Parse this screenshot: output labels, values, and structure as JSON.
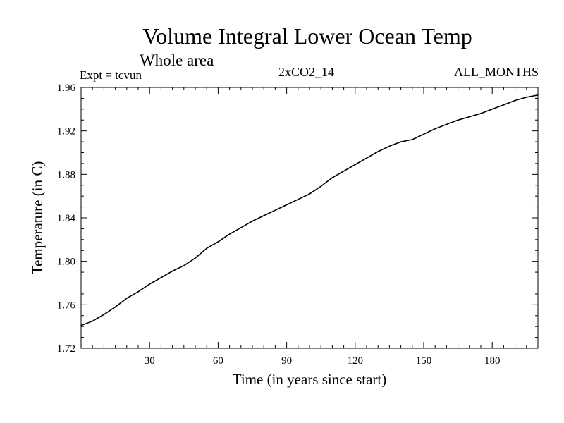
{
  "header": {
    "title": "Volume Integral Lower Ocean Temp",
    "subtitle": "Whole area",
    "experiment": "Expt = tcvun",
    "run_label": "2xCO2_14",
    "months_label": "ALL_MONTHS"
  },
  "chart_data": {
    "type": "line",
    "title": "Volume Integral Lower Ocean Temp",
    "subtitle": "Whole area",
    "xlabel": "Time (in years since start)",
    "ylabel": "Temperature (in C)",
    "xlim": [
      0,
      200
    ],
    "ylim": [
      1.72,
      1.96
    ],
    "xticks": [
      30,
      60,
      90,
      120,
      150,
      180
    ],
    "yticks": [
      1.72,
      1.76,
      1.8,
      1.84,
      1.88,
      1.92,
      1.96
    ],
    "ytick_labels": [
      "1.72",
      "1.76",
      "1.80",
      "1.84",
      "1.88",
      "1.92",
      "1.96"
    ],
    "grid": false,
    "legend": "none",
    "series": [
      {
        "color": "#000000",
        "x": [
          0,
          5,
          10,
          15,
          20,
          25,
          30,
          35,
          40,
          45,
          50,
          55,
          60,
          65,
          70,
          75,
          80,
          85,
          90,
          95,
          100,
          105,
          110,
          115,
          120,
          125,
          130,
          135,
          140,
          145,
          150,
          155,
          160,
          165,
          170,
          175,
          180,
          185,
          190,
          195,
          200
        ],
        "y": [
          1.741,
          1.745,
          1.751,
          1.758,
          1.766,
          1.772,
          1.779,
          1.785,
          1.791,
          1.796,
          1.803,
          1.812,
          1.818,
          1.825,
          1.831,
          1.837,
          1.842,
          1.847,
          1.852,
          1.857,
          1.862,
          1.869,
          1.877,
          1.883,
          1.889,
          1.895,
          1.901,
          1.906,
          1.91,
          1.912,
          1.917,
          1.922,
          1.926,
          1.93,
          1.933,
          1.936,
          1.94,
          1.944,
          1.948,
          1.951,
          1.953
        ]
      }
    ]
  }
}
